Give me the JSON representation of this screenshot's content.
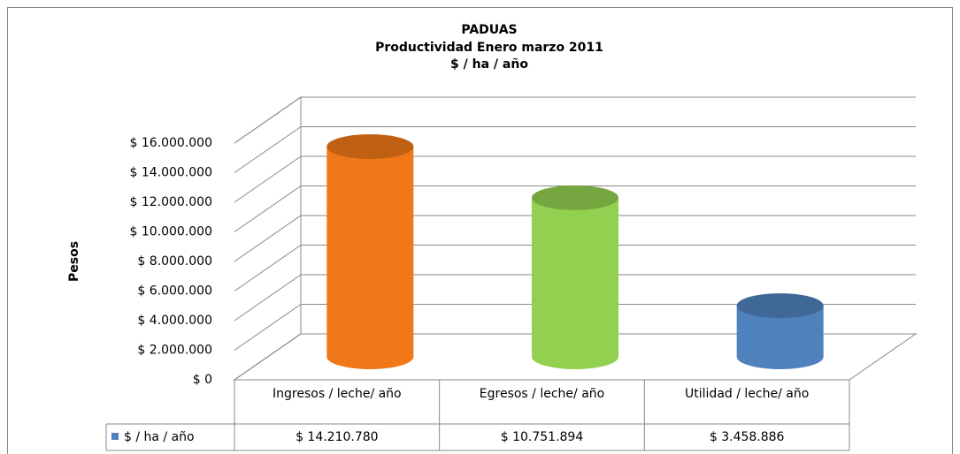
{
  "chart_data": {
    "type": "bar",
    "title": [
      "PADUAS",
      "Productividad Enero marzo 2011",
      "$ / ha / año"
    ],
    "y_label": "Pesos",
    "categories": [
      "Ingresos / leche/ año",
      "Egresos / leche/ año",
      "Utilidad / leche/ año"
    ],
    "series": [
      {
        "name": "$ / ha / año",
        "color": "#4f81bd",
        "colors": [
          "#f07818",
          "#92d050",
          "#4f81bd"
        ],
        "values": [
          14210780,
          10751894,
          3458886
        ],
        "value_labels": [
          "$ 14.210.780",
          "$ 10.751.894",
          "$ 3.458.886"
        ]
      }
    ],
    "ylim": [
      0,
      16000000
    ],
    "yticks": [
      {
        "value": 0,
        "label": "$ 0"
      },
      {
        "value": 2000000,
        "label": "$ 2.000.000"
      },
      {
        "value": 4000000,
        "label": "$ 4.000.000"
      },
      {
        "value": 6000000,
        "label": "$ 6.000.000"
      },
      {
        "value": 8000000,
        "label": "$ 8.000.000"
      },
      {
        "value": 10000000,
        "label": "$ 10.000.000"
      },
      {
        "value": 12000000,
        "label": "$ 12.000.000"
      },
      {
        "value": 14000000,
        "label": "$ 14.000.000"
      },
      {
        "value": 16000000,
        "label": "$ 16.000.000"
      }
    ],
    "grid": true
  }
}
